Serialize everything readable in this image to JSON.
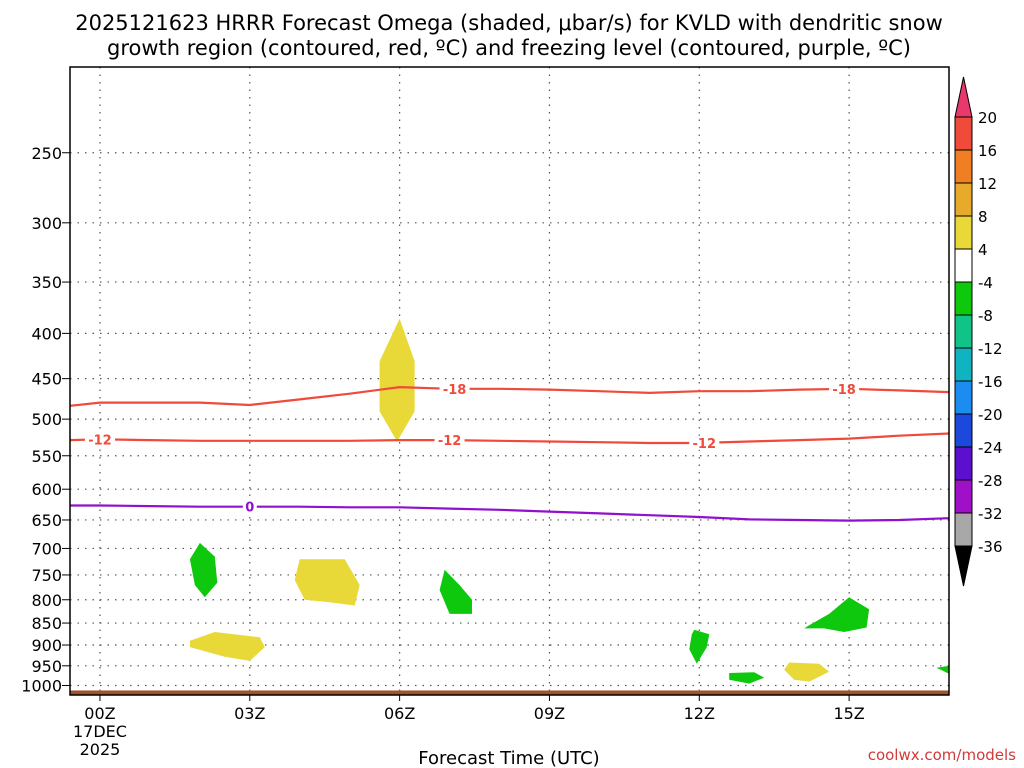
{
  "chart_data": {
    "type": "time-height",
    "title_line1": "2025121623 HRRR Forecast Omega (shaded, μbar/s) for KVLD with dendritic snow",
    "title_line2": "growth region (contoured, red, ºC) and freezing level (contoured, purple, ºC)",
    "xlabel": "Forecast Time (UTC)",
    "credit": "coolwx.com/models",
    "x_ticks": [
      {
        "hour": 0,
        "label": "00Z"
      },
      {
        "hour": 3,
        "label": "03Z"
      },
      {
        "hour": 6,
        "label": "06Z"
      },
      {
        "hour": 9,
        "label": "09Z"
      },
      {
        "hour": 12,
        "label": "12Z"
      },
      {
        "hour": 15,
        "label": "15Z"
      }
    ],
    "date_label": [
      "17DEC",
      "2025"
    ],
    "x_range_hours": [
      -0.6,
      17.0
    ],
    "y_ticks": [
      250,
      300,
      350,
      400,
      450,
      500,
      550,
      600,
      650,
      700,
      750,
      800,
      850,
      900,
      950,
      1000
    ],
    "y_range_mb": [
      200,
      1025
    ],
    "y_scale": "log-pressure",
    "ground_mb": 1013,
    "colorbar": {
      "labels": [
        "20",
        "16",
        "12",
        "8",
        "4",
        "-4",
        "-8",
        "-12",
        "-16",
        "-20",
        "-24",
        "-28",
        "-32",
        "-36"
      ],
      "colors": [
        "#e8386c",
        "#ef4a3a",
        "#ef7f22",
        "#e8aa2a",
        "#e8d838",
        "#ffffff",
        "#0ec80e",
        "#10c488",
        "#10b4c0",
        "#1c8cf0",
        "#1c48dc",
        "#5a10cc",
        "#a010c8",
        "#a8a8a8",
        "#000000"
      ]
    },
    "contours": [
      {
        "name": "dgz-minus18",
        "color": "#ef4a3a",
        "label": "-18",
        "points": [
          [
            -0.6,
            483
          ],
          [
            0,
            479
          ],
          [
            1,
            479
          ],
          [
            2,
            479
          ],
          [
            3,
            482
          ],
          [
            4,
            475
          ],
          [
            5,
            468
          ],
          [
            6,
            460
          ],
          [
            7,
            462
          ],
          [
            8,
            462
          ],
          [
            9,
            463
          ],
          [
            10,
            465
          ],
          [
            11,
            467
          ],
          [
            12,
            465
          ],
          [
            13,
            465
          ],
          [
            14,
            463
          ],
          [
            15,
            462
          ],
          [
            16,
            464
          ],
          [
            17,
            466
          ]
        ],
        "label_hours": [
          7.1,
          14.9
        ]
      },
      {
        "name": "dgz-minus12",
        "color": "#ef4a3a",
        "label": "-12",
        "points": [
          [
            -0.6,
            528
          ],
          [
            0,
            527
          ],
          [
            1,
            528
          ],
          [
            2,
            529
          ],
          [
            3,
            529
          ],
          [
            4,
            529
          ],
          [
            5,
            529
          ],
          [
            6,
            528
          ],
          [
            7,
            528
          ],
          [
            8,
            529
          ],
          [
            9,
            530
          ],
          [
            10,
            531
          ],
          [
            11,
            532
          ],
          [
            12,
            532
          ],
          [
            13,
            530
          ],
          [
            14,
            528
          ],
          [
            15,
            526
          ],
          [
            16,
            522
          ],
          [
            17,
            519
          ]
        ],
        "label_hours": [
          0.0,
          7.0,
          12.1
        ]
      },
      {
        "name": "freezing-0",
        "color": "#9010cc",
        "label": "0",
        "points": [
          [
            -0.6,
            626
          ],
          [
            0,
            626
          ],
          [
            1,
            627
          ],
          [
            2,
            628
          ],
          [
            3,
            628
          ],
          [
            4,
            628
          ],
          [
            5,
            629
          ],
          [
            6,
            629
          ],
          [
            7,
            631
          ],
          [
            8,
            633
          ],
          [
            9,
            636
          ],
          [
            10,
            639
          ],
          [
            11,
            642
          ],
          [
            12,
            645
          ],
          [
            13,
            649
          ],
          [
            14,
            650
          ],
          [
            15,
            651
          ],
          [
            16,
            650
          ],
          [
            17,
            647
          ]
        ],
        "label_hours": [
          3.0
        ]
      }
    ],
    "omega_regions": [
      {
        "value_range": "4 to 8",
        "color": "#e8d838",
        "points": [
          [
            6.0,
            385
          ],
          [
            6.3,
            430
          ],
          [
            6.3,
            490
          ],
          [
            5.95,
            530
          ],
          [
            5.6,
            490
          ],
          [
            5.6,
            430
          ]
        ]
      },
      {
        "value_range": "4 to 8",
        "color": "#e8d838",
        "points": [
          [
            4.0,
            720
          ],
          [
            4.9,
            720
          ],
          [
            5.2,
            770
          ],
          [
            5.1,
            812
          ],
          [
            4.6,
            805
          ],
          [
            4.1,
            800
          ],
          [
            3.9,
            760
          ]
        ]
      },
      {
        "value_range": "4 to 8",
        "color": "#e8d838",
        "points": [
          [
            1.8,
            890
          ],
          [
            2.3,
            870
          ],
          [
            3.2,
            882
          ],
          [
            3.3,
            905
          ],
          [
            3.0,
            938
          ],
          [
            2.5,
            928
          ],
          [
            1.8,
            905
          ]
        ]
      },
      {
        "value_range": "4 to 8",
        "color": "#e8d838",
        "points": [
          [
            13.8,
            942
          ],
          [
            14.4,
            945
          ],
          [
            14.6,
            965
          ],
          [
            14.2,
            990
          ],
          [
            13.9,
            985
          ],
          [
            13.7,
            960
          ]
        ]
      },
      {
        "value_range": "-4 to -8",
        "color": "#0ec80e",
        "points": [
          [
            2.0,
            690
          ],
          [
            2.3,
            715
          ],
          [
            2.35,
            765
          ],
          [
            2.1,
            795
          ],
          [
            1.9,
            770
          ],
          [
            1.8,
            720
          ]
        ]
      },
      {
        "value_range": "-4 to -8",
        "color": "#0ec80e",
        "points": [
          [
            6.9,
            740
          ],
          [
            7.2,
            770
          ],
          [
            7.45,
            800
          ],
          [
            7.45,
            830
          ],
          [
            7.0,
            830
          ],
          [
            6.8,
            780
          ]
        ]
      },
      {
        "value_range": "-4 to -8",
        "color": "#0ec80e",
        "points": [
          [
            11.9,
            865
          ],
          [
            12.2,
            875
          ],
          [
            12.15,
            905
          ],
          [
            11.95,
            945
          ],
          [
            11.8,
            910
          ],
          [
            11.85,
            875
          ]
        ]
      },
      {
        "value_range": "-4 to -8",
        "color": "#0ec80e",
        "points": [
          [
            12.6,
            968
          ],
          [
            13.1,
            966
          ],
          [
            13.3,
            980
          ],
          [
            13.0,
            995
          ],
          [
            12.6,
            985
          ]
        ]
      },
      {
        "value_range": "-4 to -8",
        "color": "#0ec80e",
        "points": [
          [
            14.2,
            855
          ],
          [
            14.6,
            830
          ],
          [
            15.0,
            795
          ],
          [
            15.4,
            820
          ],
          [
            15.35,
            860
          ],
          [
            14.9,
            870
          ],
          [
            14.5,
            862
          ],
          [
            14.1,
            862
          ]
        ]
      },
      {
        "value_range": "-4 to -8",
        "color": "#0ec80e",
        "points": [
          [
            16.75,
            955
          ],
          [
            17.0,
            950
          ],
          [
            17.0,
            970
          ]
        ]
      }
    ]
  }
}
